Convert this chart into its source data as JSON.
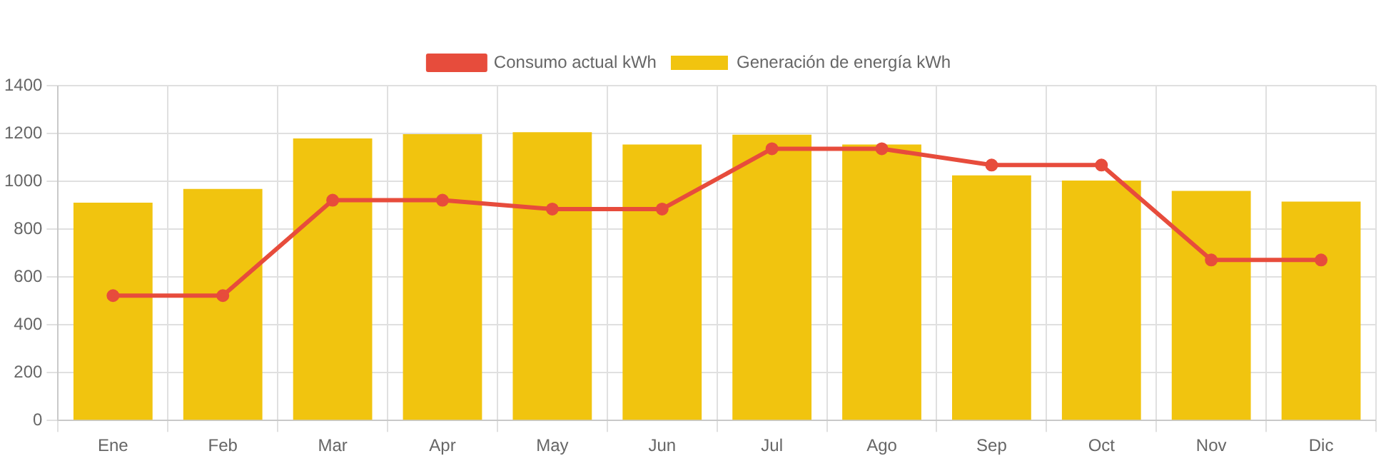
{
  "chart_data": {
    "type": "bar",
    "categories": [
      "Ene",
      "Feb",
      "Mar",
      "Apr",
      "May",
      "Jun",
      "Jul",
      "Ago",
      "Sep",
      "Oct",
      "Nov",
      "Dic"
    ],
    "series": [
      {
        "name": "Consumo actual kWh",
        "type": "line",
        "color": "#e74c3c",
        "values": [
          522,
          522,
          921,
          921,
          884,
          884,
          1136,
          1136,
          1068,
          1068,
          671,
          671
        ]
      },
      {
        "name": "Generación de energía kWh",
        "color": "#f1c40f",
        "values": [
          911,
          968,
          1179,
          1197,
          1205,
          1154,
          1195,
          1154,
          1025,
          1003,
          960,
          915
        ]
      }
    ],
    "ylim": [
      0,
      1400
    ],
    "yticks": [
      0,
      200,
      400,
      600,
      800,
      1000,
      1200,
      1400
    ],
    "grid": true,
    "legend": "top",
    "marker": "circle",
    "line_style": "solid"
  }
}
